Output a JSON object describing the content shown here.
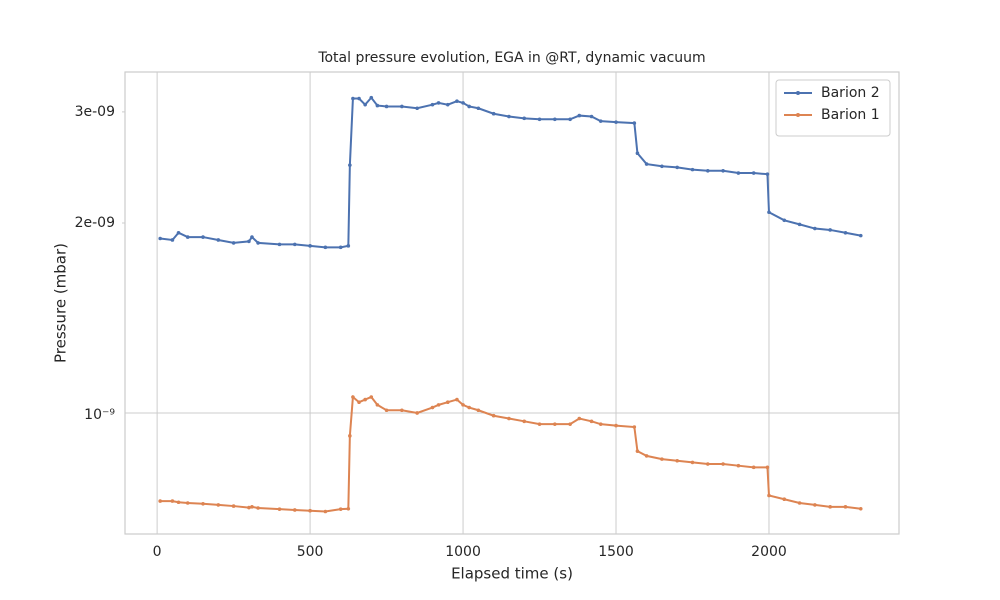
{
  "chart_data": {
    "type": "line",
    "title": "Total pressure evolution, EGA in @RT, dynamic vacuum",
    "xlabel": "Elapsed time (s)",
    "ylabel": "Pressure (mbar)",
    "yscale": "log",
    "grid": true,
    "legend": "upper right",
    "xlim": [
      -105,
      2425
    ],
    "xticks": [
      0,
      500,
      1000,
      1500,
      2000
    ],
    "ylim": [
      6.43e-10,
      3.47e-09
    ],
    "yticks": [
      {
        "value": 1e-09,
        "label": "10⁻⁹"
      }
    ],
    "yticks_minor": [
      {
        "value": 2e-09,
        "label": "2e-09"
      },
      {
        "value": 3e-09,
        "label": "3e-09"
      }
    ],
    "x": [
      10,
      50,
      70,
      100,
      150,
      200,
      250,
      300,
      310,
      330,
      400,
      450,
      500,
      550,
      600,
      625,
      630,
      640,
      660,
      680,
      700,
      720,
      750,
      800,
      850,
      900,
      920,
      950,
      980,
      1000,
      1020,
      1050,
      1100,
      1150,
      1200,
      1250,
      1300,
      1350,
      1380,
      1420,
      1450,
      1500,
      1560,
      1570,
      1600,
      1650,
      1700,
      1750,
      1800,
      1850,
      1900,
      1950,
      1995,
      2000,
      2050,
      2100,
      2150,
      2200,
      2250,
      2300
    ],
    "series": [
      {
        "name": "Barion 2",
        "color": "#4c72b0",
        "values": [
          1.89e-09,
          1.88e-09,
          1.93e-09,
          1.9e-09,
          1.9e-09,
          1.88e-09,
          1.86e-09,
          1.87e-09,
          1.9e-09,
          1.86e-09,
          1.85e-09,
          1.85e-09,
          1.84e-09,
          1.83e-09,
          1.83e-09,
          1.84e-09,
          2.47e-09,
          3.15e-09,
          3.15e-09,
          3.08e-09,
          3.16e-09,
          3.07e-09,
          3.06e-09,
          3.06e-09,
          3.04e-09,
          3.08e-09,
          3.1e-09,
          3.08e-09,
          3.12e-09,
          3.1e-09,
          3.06e-09,
          3.04e-09,
          2.98e-09,
          2.95e-09,
          2.93e-09,
          2.92e-09,
          2.92e-09,
          2.92e-09,
          2.96e-09,
          2.95e-09,
          2.9e-09,
          2.89e-09,
          2.88e-09,
          2.58e-09,
          2.48e-09,
          2.46e-09,
          2.45e-09,
          2.43e-09,
          2.42e-09,
          2.42e-09,
          2.4e-09,
          2.4e-09,
          2.39e-09,
          2.08e-09,
          2.02e-09,
          1.99e-09,
          1.96e-09,
          1.95e-09,
          1.93e-09,
          1.91e-09
        ]
      },
      {
        "name": "Barion 1",
        "color": "#dd8452",
        "values": [
          7.25e-10,
          7.25e-10,
          7.22e-10,
          7.2e-10,
          7.18e-10,
          7.15e-10,
          7.12e-10,
          7.08e-10,
          7.1e-10,
          7.07e-10,
          7.04e-10,
          7.02e-10,
          7e-10,
          6.98e-10,
          7.04e-10,
          7.05e-10,
          9.2e-10,
          1.06e-09,
          1.04e-09,
          1.05e-09,
          1.06e-09,
          1.03e-09,
          1.01e-09,
          1.01e-09,
          1e-09,
          1.02e-09,
          1.03e-09,
          1.04e-09,
          1.05e-09,
          1.03e-09,
          1.02e-09,
          1.01e-09,
          9.9e-10,
          9.8e-10,
          9.7e-10,
          9.6e-10,
          9.6e-10,
          9.6e-10,
          9.8e-10,
          9.7e-10,
          9.6e-10,
          9.55e-10,
          9.5e-10,
          8.7e-10,
          8.55e-10,
          8.45e-10,
          8.4e-10,
          8.35e-10,
          8.3e-10,
          8.3e-10,
          8.25e-10,
          8.2e-10,
          8.2e-10,
          7.4e-10,
          7.3e-10,
          7.2e-10,
          7.15e-10,
          7.1e-10,
          7.1e-10,
          7.05e-10
        ]
      }
    ]
  }
}
